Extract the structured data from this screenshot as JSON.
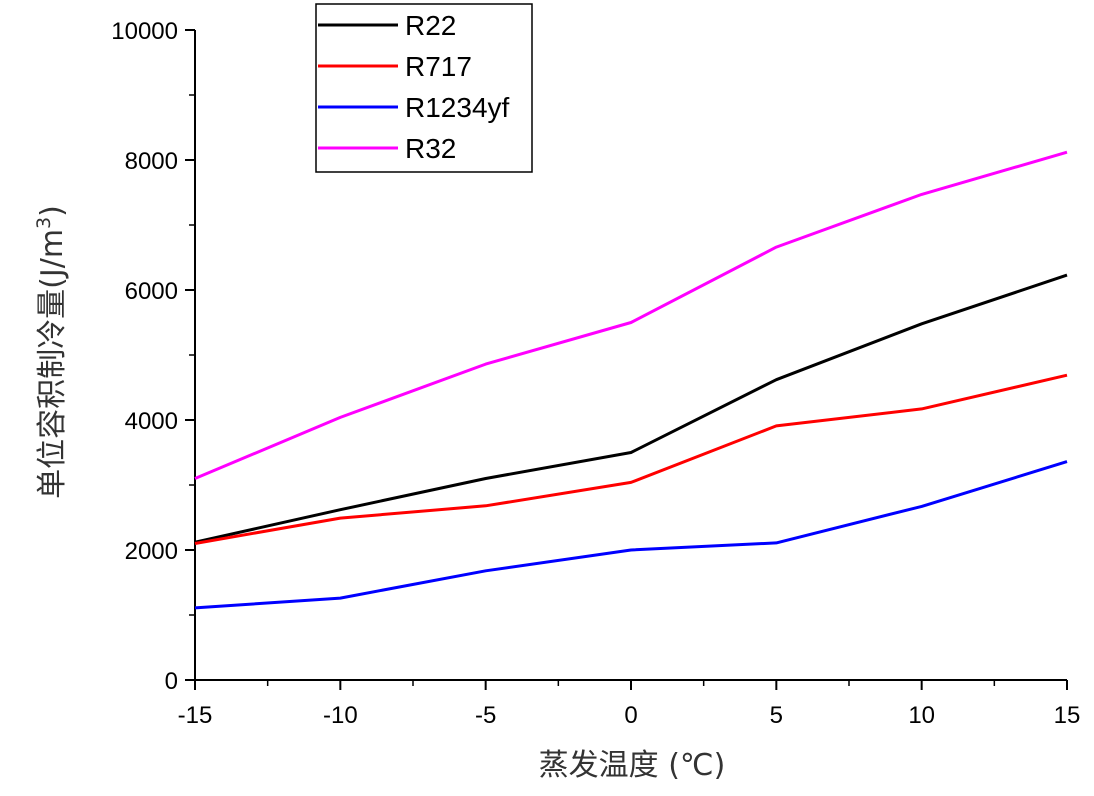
{
  "chart_data": {
    "type": "line",
    "title": "",
    "xlabel": "蒸发温度 (℃)",
    "ylabel_text": "单位容积制冷量(J/m",
    "ylabel_sup": "3",
    "ylabel_close": ")",
    "x": [
      -15,
      -10,
      -5,
      0,
      5,
      10,
      15
    ],
    "xlim": [
      -15,
      15
    ],
    "ylim": [
      0,
      10000
    ],
    "xticks": [
      -15,
      -10,
      -5,
      0,
      5,
      10,
      15
    ],
    "xtick_labels": [
      "-15",
      "-10",
      "-5",
      "0",
      "5",
      "10",
      "15"
    ],
    "yticks": [
      0,
      2000,
      4000,
      6000,
      8000,
      10000
    ],
    "ytick_labels": [
      "0",
      "2000",
      "4000",
      "6000",
      "8000",
      "10000"
    ],
    "grid": false,
    "legend_position": "top-left",
    "series": [
      {
        "name": "R22",
        "color": "#000000",
        "values": [
          2120,
          2620,
          3100,
          3500,
          4620,
          5480,
          6230
        ]
      },
      {
        "name": "R717",
        "color": "#ff0000",
        "values": [
          2100,
          2490,
          2680,
          3040,
          3910,
          4170,
          4690
        ]
      },
      {
        "name": "R1234yf",
        "color": "#0000ff",
        "values": [
          1110,
          1260,
          1680,
          2000,
          2110,
          2670,
          3360
        ]
      },
      {
        "name": "R32",
        "color": "#ff00ff",
        "values": [
          3100,
          4040,
          4860,
          5500,
          6660,
          7470,
          8120
        ]
      }
    ]
  }
}
